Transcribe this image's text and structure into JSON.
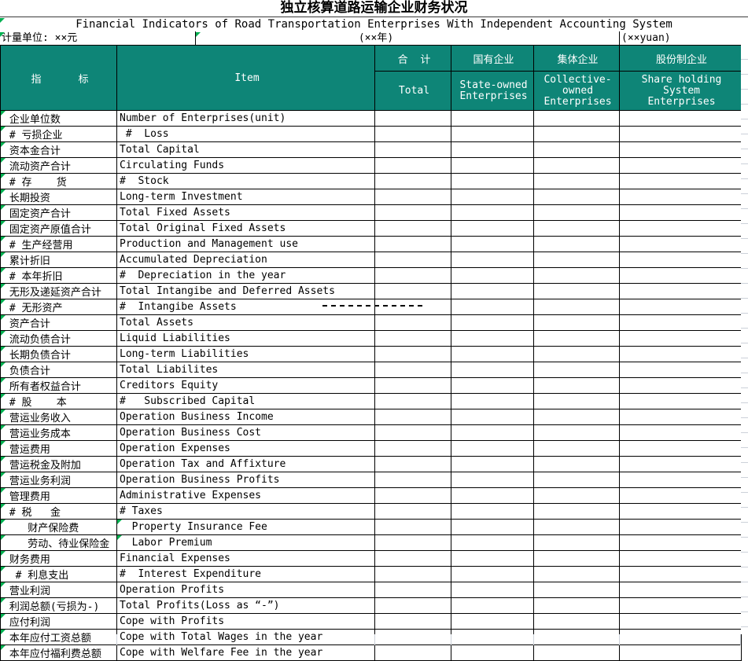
{
  "title": "独立核算道路运输企业财务状况",
  "subtitle": "Financial Indicators of Road Transportation Enterprises With Independent Accounting System",
  "units": {
    "left": "计量单位: ××元",
    "center": "(××年)",
    "right": "(××yuan)"
  },
  "colors": {
    "header_bg": "#0E8577",
    "header_underline": "#0FA480",
    "marker_green": "#00B050",
    "faint_grid": "#ccd1d9"
  },
  "header": {
    "indicator_label": "指      标",
    "item_label": "Item",
    "columns": [
      {
        "zh": "合  计",
        "en": "Total"
      },
      {
        "zh": "国有企业",
        "en": "State-owned\nEnterprises"
      },
      {
        "zh": "集体企业",
        "en": "Collective-\nowned\nEnterprises"
      },
      {
        "zh": "股份制企业",
        "en": "Share holding System\nEnterprises"
      }
    ]
  },
  "table": {
    "rows": [
      {
        "zh": " 企业单位数",
        "en": "Number of Enterprises(unit)",
        "marker_zh": true,
        "marker_en": false
      },
      {
        "zh": " # 亏损企业",
        "en": " #  Loss",
        "marker_zh": true,
        "marker_en": false
      },
      {
        "zh": " 资本金合计",
        "en": "Total Capital",
        "marker_zh": true,
        "marker_en": false
      },
      {
        "zh": " 流动资产合计",
        "en": "Circulating Funds",
        "marker_zh": true,
        "marker_en": false
      },
      {
        "zh": " # 存    货",
        "en": "#  Stock",
        "marker_zh": true,
        "marker_en": false
      },
      {
        "zh": " 长期投资",
        "en": "Long-term Investment",
        "marker_zh": true,
        "marker_en": false
      },
      {
        "zh": " 固定资产合计",
        "en": "Total Fixed Assets",
        "marker_zh": true,
        "marker_en": false
      },
      {
        "zh": " 固定资产原值合计",
        "en": "Total Original Fixed Assets",
        "marker_zh": true,
        "marker_en": false
      },
      {
        "zh": " # 生产经营用",
        "en": "Production and Management use",
        "marker_zh": true,
        "marker_en": false
      },
      {
        "zh": " 累计折旧",
        "en": "Accumulated Depreciation",
        "marker_zh": true,
        "marker_en": false
      },
      {
        "zh": " # 本年折旧",
        "en": "#  Depreciation in the year",
        "marker_zh": true,
        "marker_en": false
      },
      {
        "zh": " 无形及递延资产合计",
        "en": "Total Intangibe and Deferred Assets",
        "marker_zh": true,
        "marker_en": false
      },
      {
        "zh": " # 无形资产",
        "en": "#  Intangibe Assets",
        "marker_zh": true,
        "marker_en": false
      },
      {
        "zh": " 资产合计",
        "en": "Total Assets",
        "marker_zh": true,
        "marker_en": false
      },
      {
        "zh": " 流动负债合计",
        "en": "Liquid Liabilities",
        "marker_zh": true,
        "marker_en": false
      },
      {
        "zh": " 长期负债合计",
        "en": "Long-term Liabilities",
        "marker_zh": true,
        "marker_en": false
      },
      {
        "zh": " 负债合计",
        "en": "Total Liabilites",
        "marker_zh": true,
        "marker_en": false
      },
      {
        "zh": " 所有者权益合计",
        "en": "Creditors Equity",
        "marker_zh": true,
        "marker_en": false
      },
      {
        "zh": " # 股    本",
        "en": "#   Subscribed Capital",
        "marker_zh": true,
        "marker_en": false
      },
      {
        "zh": " 营运业务收入",
        "en": "Operation Business Income",
        "marker_zh": true,
        "marker_en": false
      },
      {
        "zh": " 营运业务成本",
        "en": "Operation Business Cost",
        "marker_zh": true,
        "marker_en": false
      },
      {
        "zh": " 营运费用",
        "en": "Operation Expenses",
        "marker_zh": true,
        "marker_en": false
      },
      {
        "zh": " 营运税金及附加",
        "en": "Operation Tax and Affixture",
        "marker_zh": true,
        "marker_en": false
      },
      {
        "zh": " 营运业务利润",
        "en": "Operation Business Profits",
        "marker_zh": true,
        "marker_en": false
      },
      {
        "zh": " 管理费用",
        "en": "Administrative Expenses",
        "marker_zh": true,
        "marker_en": false
      },
      {
        "zh": " # 税   金",
        "en": "# Taxes",
        "marker_zh": true,
        "marker_en": false
      },
      {
        "zh": "    财产保险费",
        "en": "  Property Insurance Fee",
        "marker_zh": true,
        "marker_en": true
      },
      {
        "zh": "    劳动、待业保险金",
        "en": "  Labor Premium",
        "marker_zh": true,
        "marker_en": true
      },
      {
        "zh": " 财务费用",
        "en": "Financial Expenses",
        "marker_zh": true,
        "marker_en": false
      },
      {
        "zh": "  # 利息支出",
        "en": "#  Interest Expenditure",
        "marker_zh": true,
        "marker_en": false
      },
      {
        "zh": " 营业利润",
        "en": "Operation Profits",
        "marker_zh": true,
        "marker_en": false
      },
      {
        "zh": " 利润总额(亏损为-)",
        "en": "Total Profits(Loss as “-”)",
        "marker_zh": true,
        "marker_en": false
      },
      {
        "zh": " 应付利润",
        "en": "Cope with Profits",
        "marker_zh": true,
        "marker_en": false
      },
      {
        "zh": " 本年应付工资总额",
        "en": "Cope with Total Wages in the year",
        "marker_zh": true,
        "marker_en": false
      },
      {
        "zh": " 本年应付福利费总额",
        "en": "Cope with Welfare Fee in the year",
        "marker_zh": true,
        "marker_en": false
      }
    ],
    "empty_value_columns": 4
  }
}
